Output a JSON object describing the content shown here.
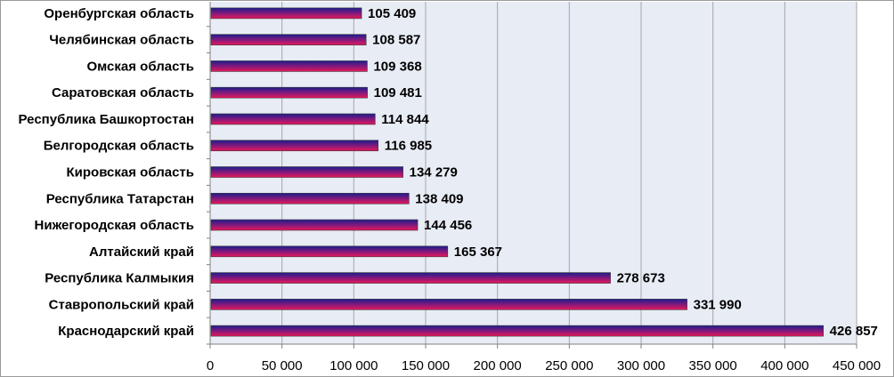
{
  "chart_data": {
    "type": "bar",
    "orientation": "horizontal",
    "categories": [
      "Оренбургская область",
      "Челябинская область",
      "Омская область",
      "Саратовская  область",
      "Республика Башкортостан",
      "Белгородская область",
      "Кировская область",
      "Республика Татарстан",
      "Нижегородская область",
      "Алтайский край",
      "Республика Калмыкия",
      "Ставропольский край",
      "Краснодарский край"
    ],
    "values": [
      105409,
      108587,
      109368,
      109481,
      114844,
      116985,
      134279,
      138409,
      144456,
      165367,
      278673,
      331990,
      426857
    ],
    "value_labels": [
      "105 409",
      "108 587",
      "109 368",
      "109 481",
      "114 844",
      "116 985",
      "134 279",
      "138 409",
      "144 456",
      "165 367",
      "278 673",
      "331 990",
      "426 857"
    ],
    "xticks": [
      0,
      50000,
      100000,
      150000,
      200000,
      250000,
      300000,
      350000,
      400000,
      450000
    ],
    "xtick_labels": [
      "0",
      "50 000",
      "100 000",
      "150 000",
      "200 000",
      "250 000",
      "300 000",
      "350 000",
      "400 000",
      "450 000"
    ],
    "xlim": [
      0,
      450000
    ],
    "grid": true,
    "legend": "none",
    "title": "",
    "xlabel": "",
    "ylabel": "",
    "colors": {
      "plot_background": "#e8ecf5",
      "grid": "#a6a6a6",
      "bar_top": "#1c1c8c",
      "bar_bottom": "#e8175a"
    }
  }
}
